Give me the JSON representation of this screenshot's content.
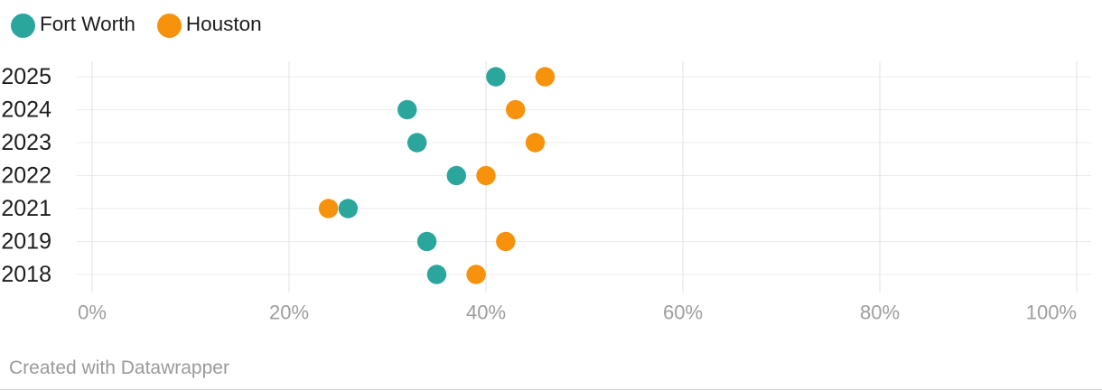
{
  "chart_data": {
    "type": "scatter",
    "subtype": "dot-plot",
    "title": "",
    "xlabel": "",
    "ylabel": "",
    "categories": [
      "2025",
      "2024",
      "2023",
      "2022",
      "2021",
      "2019",
      "2018"
    ],
    "series": [
      {
        "name": "Fort Worth",
        "color": "#2BA69D",
        "values": [
          41,
          32,
          33,
          37,
          26,
          34,
          35
        ]
      },
      {
        "name": "Houston",
        "color": "#F7920D",
        "values": [
          46,
          43,
          45,
          40,
          24,
          42,
          39
        ]
      }
    ],
    "unit": "%",
    "xlim": [
      0,
      100
    ],
    "x_ticks": [
      {
        "value": 0,
        "label": "0%"
      },
      {
        "value": 20,
        "label": "20%"
      },
      {
        "value": 40,
        "label": "40%"
      },
      {
        "value": 60,
        "label": "60%"
      },
      {
        "value": 80,
        "label": "80%"
      },
      {
        "value": 100,
        "label": "100%"
      }
    ],
    "grid": true,
    "legend_position": "top-left"
  },
  "footer": {
    "attribution": "Created with Datawrapper"
  },
  "styles": {
    "grid_color": "#e2e2e2",
    "row_line_color": "#ebebeb",
    "x_label_color": "#9d9d9d",
    "y_label_color": "#1d1d1d"
  }
}
